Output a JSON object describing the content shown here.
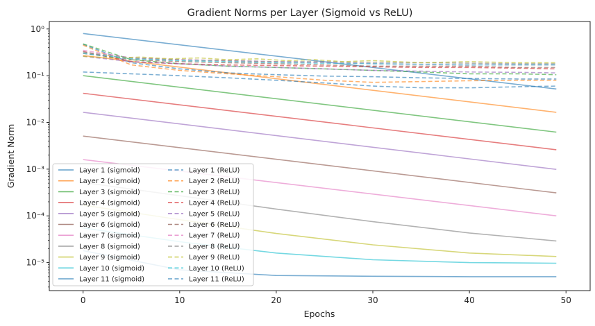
{
  "chart_data": {
    "type": "line",
    "title": "Gradient Norms per Layer (Sigmoid vs ReLU)",
    "xlabel": "Epochs",
    "ylabel": "Gradient Norm",
    "xlim": [
      -3.5,
      52.5
    ],
    "ylim_log10": [
      -5.6,
      0.16
    ],
    "y_scale": "log",
    "x_ticks": [
      0,
      10,
      20,
      30,
      40,
      50
    ],
    "y_ticks": [
      {
        "value": 1e-05,
        "label": "10⁻⁵"
      },
      {
        "value": 0.0001,
        "label": "10⁻⁴"
      },
      {
        "value": 0.001,
        "label": "10⁻³"
      },
      {
        "value": 0.01,
        "label": "10⁻²"
      },
      {
        "value": 0.1,
        "label": "10⁻¹"
      },
      {
        "value": 1,
        "label": "10⁰"
      }
    ],
    "grid": false,
    "legend_position": "lower-left",
    "legend_columns": 2,
    "colors": [
      "#1f77b4",
      "#ff7f0e",
      "#2ca02c",
      "#d62728",
      "#9467bd",
      "#8c564b",
      "#e377c2",
      "#7f7f7f",
      "#bcbd22",
      "#17becf",
      "#1f77b4"
    ],
    "sigmoid_series": [
      {
        "name": "Layer 1 (sigmoid)",
        "x": [
          0,
          49
        ],
        "y": [
          0.8,
          0.052
        ]
      },
      {
        "name": "Layer 2 (sigmoid)",
        "x": [
          0,
          49
        ],
        "y": [
          0.27,
          0.0165
        ]
      },
      {
        "name": "Layer 3 (sigmoid)",
        "x": [
          0,
          49
        ],
        "y": [
          0.1,
          0.0062
        ]
      },
      {
        "name": "Layer 4 (sigmoid)",
        "x": [
          0,
          49
        ],
        "y": [
          0.042,
          0.0026
        ]
      },
      {
        "name": "Layer 5 (sigmoid)",
        "x": [
          0,
          49
        ],
        "y": [
          0.0165,
          0.00099
        ]
      },
      {
        "name": "Layer 6 (sigmoid)",
        "x": [
          0,
          49
        ],
        "y": [
          0.0051,
          0.00031
        ]
      },
      {
        "name": "Layer 7 (sigmoid)",
        "x": [
          0,
          49
        ],
        "y": [
          0.0016,
          0.0001
        ]
      },
      {
        "name": "Layer 8 (sigmoid)",
        "x": [
          0,
          10,
          20,
          30,
          40,
          49
        ],
        "y": [
          0.00052,
          0.00027,
          0.00014,
          7.5e-05,
          4.3e-05,
          2.9e-05
        ]
      },
      {
        "name": "Layer 9 (sigmoid)",
        "x": [
          0,
          10,
          20,
          30,
          40,
          49
        ],
        "y": [
          0.00017,
          8.3e-05,
          4.2e-05,
          2.4e-05,
          1.6e-05,
          1.35e-05
        ]
      },
      {
        "name": "Layer 10 (sigmoid)",
        "x": [
          0,
          10,
          20,
          30,
          40,
          49
        ],
        "y": [
          5.5e-05,
          2.8e-05,
          1.6e-05,
          1.15e-05,
          1e-05,
          9.7e-06
        ]
      },
      {
        "name": "Layer 11 (sigmoid)",
        "x": [
          0,
          10,
          20,
          30,
          40,
          49
        ],
        "y": [
          1.8e-05,
          7e-06,
          5.3e-06,
          5.1e-06,
          5e-06,
          5e-06
        ]
      }
    ],
    "relu_series": [
      {
        "name": "Layer 1 (ReLU)",
        "x": [
          0,
          5,
          10,
          15,
          20,
          25,
          30,
          35,
          40,
          45,
          49
        ],
        "y": [
          0.47,
          0.19,
          0.14,
          0.115,
          0.105,
          0.098,
          0.095,
          0.09,
          0.087,
          0.085,
          0.085
        ]
      },
      {
        "name": "Layer 2 (ReLU)",
        "x": [
          0,
          5,
          10,
          15,
          20,
          25,
          30,
          35,
          40,
          45,
          49
        ],
        "y": [
          0.45,
          0.17,
          0.13,
          0.11,
          0.095,
          0.08,
          0.072,
          0.075,
          0.078,
          0.08,
          0.08
        ]
      },
      {
        "name": "Layer 3 (ReLU)",
        "x": [
          0,
          5,
          10,
          15,
          20,
          25,
          30,
          35,
          40,
          45,
          49
        ],
        "y": [
          0.48,
          0.22,
          0.18,
          0.16,
          0.15,
          0.14,
          0.13,
          0.12,
          0.11,
          0.11,
          0.105
        ]
      },
      {
        "name": "Layer 4 (ReLU)",
        "x": [
          0,
          5,
          10,
          15,
          20,
          25,
          30,
          35,
          40,
          45,
          49
        ],
        "y": [
          0.33,
          0.2,
          0.18,
          0.17,
          0.165,
          0.16,
          0.155,
          0.15,
          0.15,
          0.145,
          0.14
        ]
      },
      {
        "name": "Layer 5 (ReLU)",
        "x": [
          0,
          5,
          10,
          15,
          20,
          25,
          30,
          35,
          40,
          45,
          49
        ],
        "y": [
          0.26,
          0.2,
          0.18,
          0.16,
          0.15,
          0.14,
          0.13,
          0.125,
          0.12,
          0.118,
          0.115
        ]
      },
      {
        "name": "Layer 6 (ReLU)",
        "x": [
          0,
          5,
          10,
          15,
          20,
          25,
          30,
          35,
          40,
          45,
          49
        ],
        "y": [
          0.3,
          0.22,
          0.2,
          0.19,
          0.18,
          0.17,
          0.16,
          0.16,
          0.16,
          0.15,
          0.15
        ]
      },
      {
        "name": "Layer 7 (ReLU)",
        "x": [
          0,
          5,
          10,
          15,
          20,
          25,
          30,
          35,
          40,
          45,
          49
        ],
        "y": [
          0.35,
          0.24,
          0.22,
          0.21,
          0.2,
          0.19,
          0.18,
          0.175,
          0.17,
          0.17,
          0.17
        ]
      },
      {
        "name": "Layer 8 (ReLU)",
        "x": [
          0,
          5,
          10,
          15,
          20,
          25,
          30,
          35,
          40,
          45,
          49
        ],
        "y": [
          0.32,
          0.24,
          0.22,
          0.21,
          0.2,
          0.2,
          0.19,
          0.19,
          0.185,
          0.18,
          0.18
        ]
      },
      {
        "name": "Layer 9 (ReLU)",
        "x": [
          0,
          3,
          6,
          9,
          12,
          15,
          18,
          21,
          24,
          27,
          30,
          35,
          40,
          45,
          49
        ],
        "y": [
          0.26,
          0.24,
          0.25,
          0.23,
          0.24,
          0.22,
          0.23,
          0.21,
          0.22,
          0.2,
          0.21,
          0.19,
          0.2,
          0.19,
          0.19
        ]
      },
      {
        "name": "Layer 10 (ReLU)",
        "x": [
          0,
          5,
          10,
          15,
          20,
          25,
          30,
          35,
          40,
          45,
          49
        ],
        "y": [
          0.3,
          0.23,
          0.21,
          0.2,
          0.19,
          0.185,
          0.18,
          0.175,
          0.17,
          0.17,
          0.17
        ]
      },
      {
        "name": "Layer 11 (ReLU)",
        "x": [
          0,
          5,
          10,
          15,
          20,
          25,
          30,
          35,
          40,
          45,
          49
        ],
        "y": [
          0.12,
          0.11,
          0.1,
          0.09,
          0.08,
          0.07,
          0.06,
          0.055,
          0.055,
          0.058,
          0.06
        ]
      }
    ]
  }
}
